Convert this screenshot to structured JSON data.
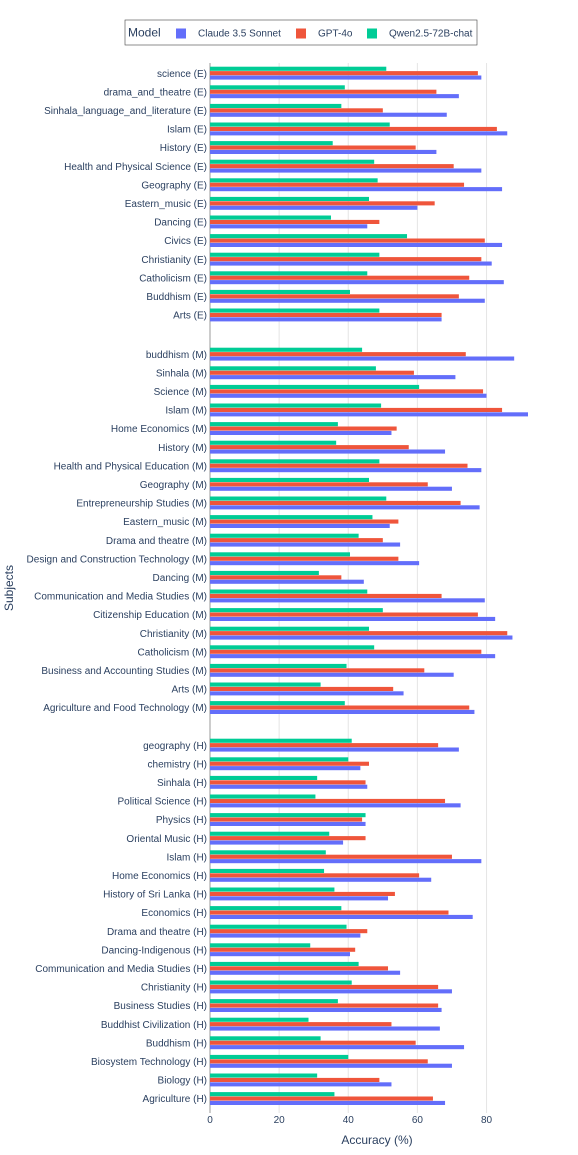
{
  "chart_data": {
    "type": "bar",
    "orientation": "horizontal",
    "xlabel": "Accuracy (%)",
    "ylabel": "Subjects",
    "xlim": [
      0,
      92
    ],
    "xticks": [
      0,
      20,
      40,
      60,
      80
    ],
    "grid": true,
    "legend": {
      "title": "Model",
      "placement": "top-center",
      "items": [
        {
          "name": "Claude 3.5 Sonnet",
          "color": "#636efa"
        },
        {
          "name": "GPT-4o",
          "color": "#ef553b"
        },
        {
          "name": "Qwen2.5-72B-chat",
          "color": "#00cc96"
        }
      ]
    },
    "groups": [
      {
        "categories": [
          "science (E)",
          "drama_and_theatre (E)",
          "Sinhala_language_and_literature (E)",
          "Islam (E)",
          "History (E)",
          "Health and Physical Science (E)",
          "Geography (E)",
          "Eastern_music (E)",
          "Dancing (E)",
          "Civics (E)",
          "Christianity (E)",
          "Catholicism (E)",
          "Buddhism (E)",
          "Arts (E)"
        ],
        "series": [
          {
            "name": "Claude 3.5 Sonnet",
            "values": [
              78.5,
              72,
              68.5,
              86,
              65.5,
              78.5,
              84.5,
              60,
              45.5,
              84.5,
              81.5,
              85,
              79.5,
              67
            ]
          },
          {
            "name": "GPT-4o",
            "values": [
              77.5,
              65.5,
              50,
              83,
              59.5,
              70.5,
              73.5,
              65,
              49,
              79.5,
              78.5,
              75,
              72,
              67
            ]
          },
          {
            "name": "Qwen2.5-72B-chat",
            "values": [
              51,
              39,
              38,
              52,
              35.5,
              47.5,
              48.5,
              46,
              35,
              57,
              49,
              45.5,
              40.5,
              49
            ]
          }
        ]
      },
      {
        "categories": [
          "buddhism (M)",
          "Sinhala (M)",
          "Science (M)",
          "Islam (M)",
          "Home Economics (M)",
          "History (M)",
          "Health and Physical Education (M)",
          "Geography (M)",
          "Entrepreneurship Studies (M)",
          "Eastern_music (M)",
          "Drama and theatre (M)",
          "Design and Construction Technology (M)",
          "Dancing (M)",
          "Communication and Media Studies (M)",
          "Citizenship Education (M)",
          "Christianity (M)",
          "Catholicism (M)",
          "Business and Accounting Studies (M)",
          "Arts (M)",
          "Agriculture and Food Technology (M)"
        ],
        "series": [
          {
            "name": "Claude 3.5 Sonnet",
            "values": [
              88,
              71,
              80,
              92,
              52.5,
              68,
              78.5,
              70,
              78,
              52,
              55,
              60.5,
              44.5,
              79.5,
              82.5,
              87.5,
              82.5,
              70.5,
              56,
              76.5
            ]
          },
          {
            "name": "GPT-4o",
            "values": [
              74,
              59,
              79,
              84.5,
              54,
              57.5,
              74.5,
              63,
              72.5,
              54.5,
              50,
              54.5,
              38,
              67,
              77.5,
              86,
              78.5,
              62,
              53,
              75
            ]
          },
          {
            "name": "Qwen2.5-72B-chat",
            "values": [
              44,
              48,
              60.5,
              49.5,
              37,
              36.5,
              49,
              46,
              51,
              47,
              43,
              40.5,
              31.5,
              45.5,
              50,
              46,
              47.5,
              39.5,
              32,
              39
            ]
          }
        ]
      },
      {
        "categories": [
          "geography (H)",
          "chemistry (H)",
          "Sinhala (H)",
          "Political Science (H)",
          "Physics (H)",
          "Oriental Music (H)",
          "Islam (H)",
          "Home Economics (H)",
          "History of Sri Lanka (H)",
          "Economics (H)",
          "Drama and theatre (H)",
          "Dancing-Indigenous (H)",
          "Communication and Media Studies (H)",
          "Christianity (H)",
          "Business Studies (H)",
          "Buddhist Civilization (H)",
          "Buddhism (H)",
          "Biosystem Technology (H)",
          "Biology (H)",
          "Agriculture (H)"
        ],
        "series": [
          {
            "name": "Claude 3.5 Sonnet",
            "values": [
              72,
              43.5,
              45.5,
              72.5,
              45,
              38.5,
              78.5,
              64,
              51.5,
              76,
              43.5,
              40.5,
              55,
              70,
              67,
              66.5,
              73.5,
              70,
              52.5,
              68
            ]
          },
          {
            "name": "GPT-4o",
            "values": [
              66,
              46,
              45,
              68,
              44,
              45,
              70,
              60.5,
              53.5,
              69,
              45.5,
              42,
              51.5,
              66,
              66,
              52.5,
              59.5,
              63,
              49,
              64.5
            ]
          },
          {
            "name": "Qwen2.5-72B-chat",
            "values": [
              41,
              40,
              31,
              30.5,
              45,
              34.5,
              33.5,
              33,
              36,
              38,
              39.5,
              29,
              43,
              41,
              37,
              28.5,
              32,
              40,
              31,
              36
            ]
          }
        ]
      }
    ]
  }
}
